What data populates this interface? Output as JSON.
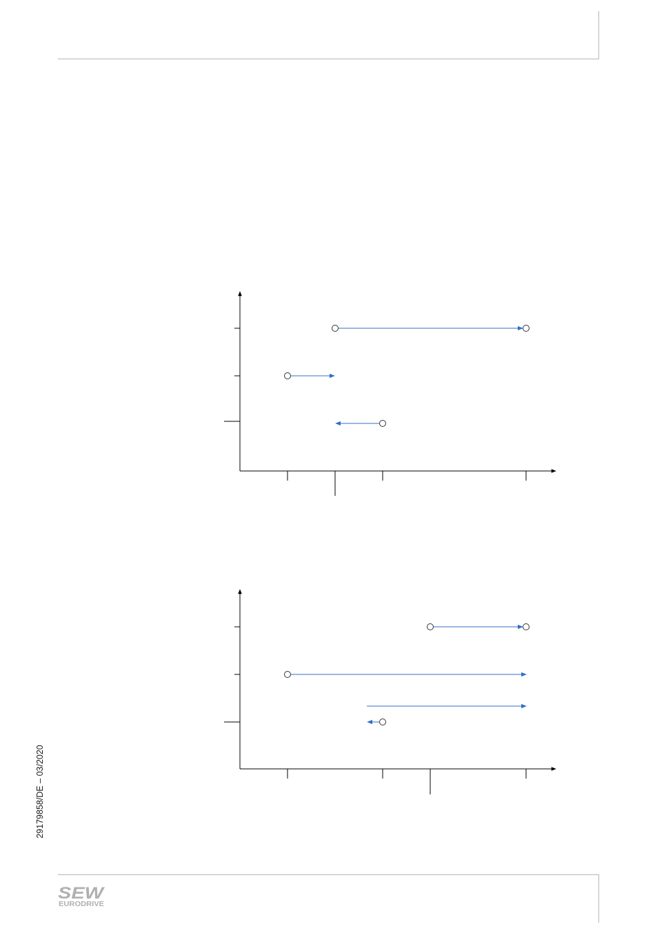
{
  "footer": {
    "doc_number": "29179858/DE – 03/2020",
    "logo_text": "SEW",
    "logo_subtext": "EURODRIVE"
  },
  "colors": {
    "arrow": "#2f6fc6",
    "axis": "#000000",
    "rule": "#b5b5b5"
  }
}
